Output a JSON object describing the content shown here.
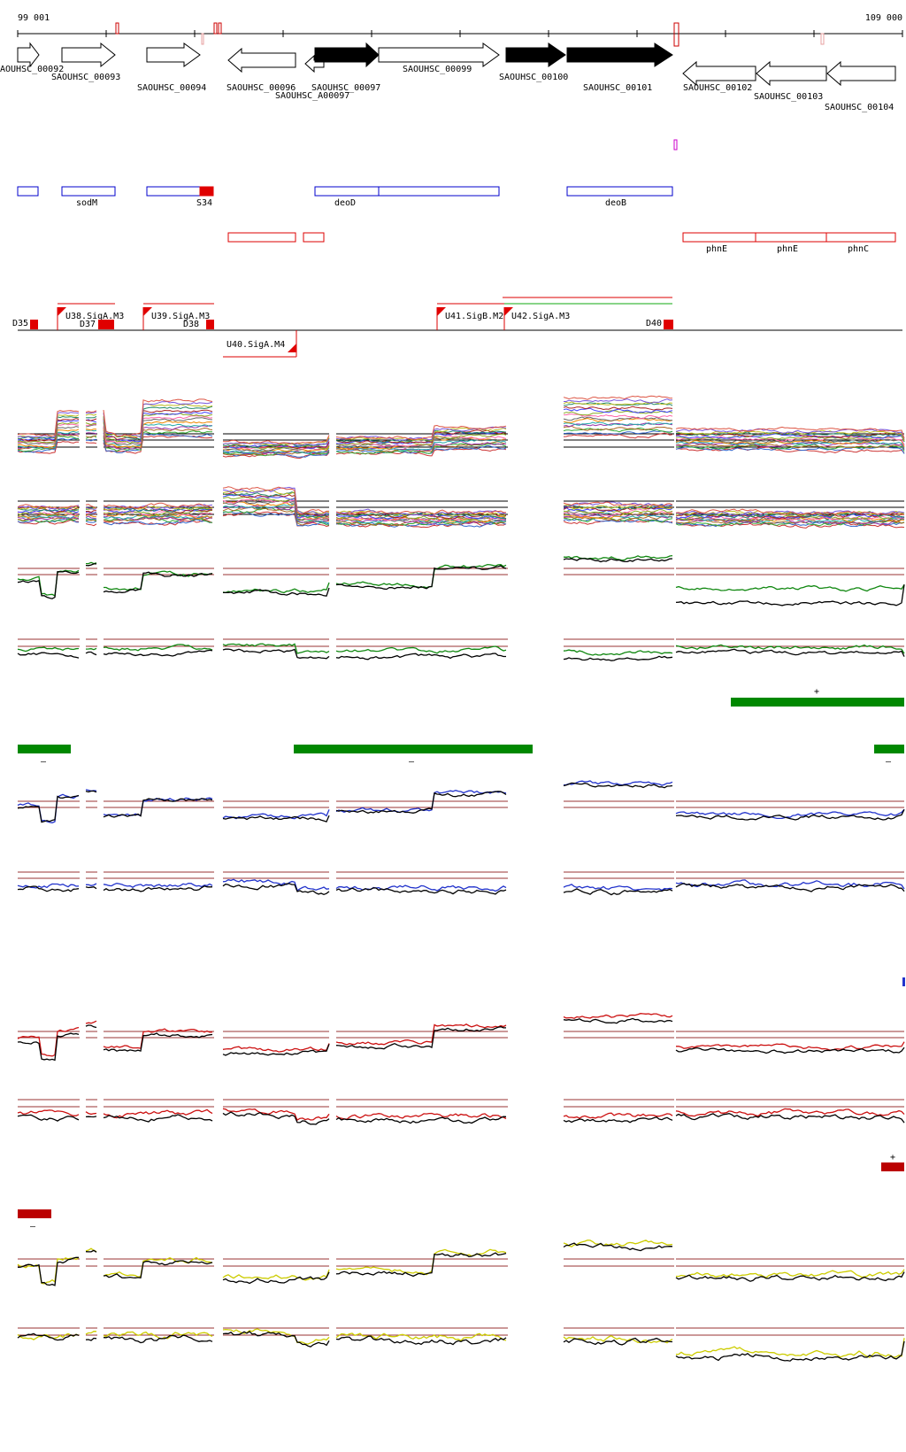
{
  "coords": {
    "start": "99 001",
    "end": "109 000"
  },
  "genes": [
    {
      "id": "gene-00092",
      "label": "AOUHSC_00092",
      "strand": "+",
      "filled": false
    },
    {
      "id": "gene-00093",
      "label": "SAOUHSC_00093",
      "strand": "+",
      "filled": false
    },
    {
      "id": "gene-00094",
      "label": "SAOUHSC_00094",
      "strand": "+",
      "filled": false
    },
    {
      "id": "gene-00096",
      "label": "SAOUHSC_00096",
      "strand": "-",
      "filled": false
    },
    {
      "id": "gene-A00097",
      "label": "SAOUHSC_A00097",
      "strand": "-",
      "filled": false
    },
    {
      "id": "gene-00097",
      "label": "SAOUHSC_00097",
      "strand": "+",
      "filled": true
    },
    {
      "id": "gene-00099",
      "label": "SAOUHSC_00099",
      "strand": "+",
      "filled": false
    },
    {
      "id": "gene-00100",
      "label": "SAOUHSC_00100",
      "strand": "+",
      "filled": true
    },
    {
      "id": "gene-00101",
      "label": "SAOUHSC_00101",
      "strand": "+",
      "filled": true
    },
    {
      "id": "gene-00102",
      "label": "SAOUHSC_00102",
      "strand": "-",
      "filled": false
    },
    {
      "id": "gene-00103",
      "label": "SAOUHSC_00103",
      "strand": "-",
      "filled": false
    },
    {
      "id": "gene-00104",
      "label": "SAOUHSC_00104",
      "strand": "-",
      "filled": false
    }
  ],
  "blue_features": [
    "sodM",
    "S34",
    "deoD",
    "deoB"
  ],
  "red_features": [
    "phnE",
    "phnE",
    "phnC"
  ],
  "promoters": [
    "D35",
    "U38.SigA.M3",
    "D37",
    "U39.SigA.M3",
    "D38",
    "U40.SigA.M4",
    "U41.SigB.M2",
    "U42.SigA.M3",
    "D40"
  ],
  "bar_marks": {
    "plus": "+",
    "minus": "–"
  },
  "colors": {
    "gene_outline": "#000000",
    "blue_feature": "#0000cc",
    "red_feature": "#dd0000",
    "magenta": "#cc00cc",
    "green_bar": "#008800",
    "darkred_bar": "#bb0000",
    "threshold": "#993333",
    "trace_green": "#118811",
    "trace_blue": "#2233cc",
    "trace_red": "#cc1111",
    "trace_yellow": "#cccc00"
  }
}
